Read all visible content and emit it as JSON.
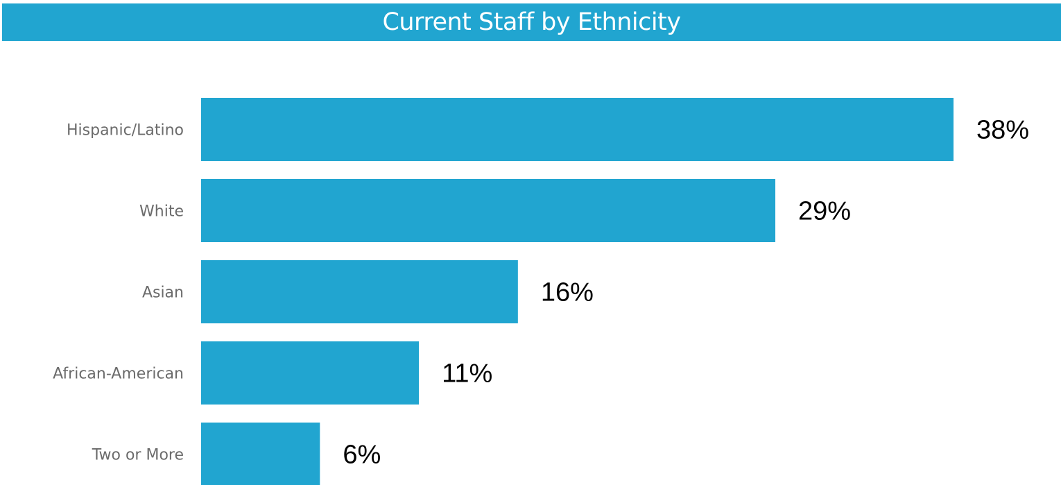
{
  "chart_data": {
    "type": "bar",
    "orientation": "horizontal",
    "title": "Current Staff by Ethnicity",
    "categories": [
      "Hispanic/Latino",
      "White",
      "Asian",
      "African-American",
      "Two or More"
    ],
    "values": [
      38,
      29,
      16,
      11,
      6
    ],
    "value_labels": [
      "38%",
      "29%",
      "16%",
      "11%",
      "6%"
    ],
    "unit": "%",
    "xlim": [
      0,
      38
    ],
    "grid": false,
    "legend": "none",
    "colors": {
      "bar": "#21a5d0",
      "title_bar": "#21a5d0",
      "title_text": "#ffffff",
      "category_label": "#6b6b6b",
      "value_label": "#000000"
    }
  }
}
